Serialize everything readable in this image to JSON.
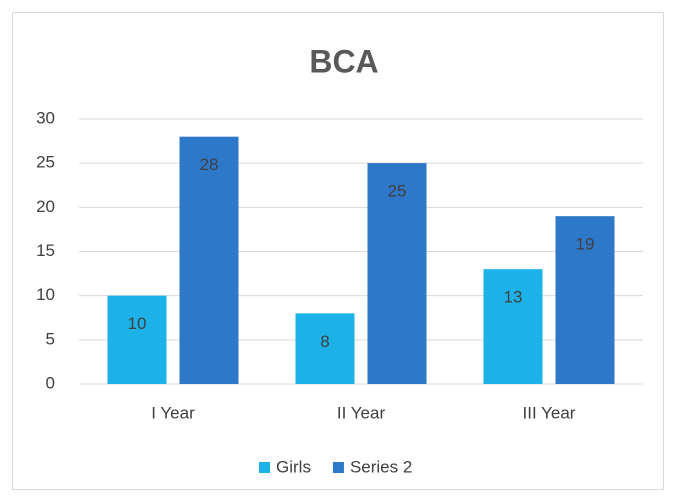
{
  "chart_data": {
    "type": "bar",
    "title": "BCA",
    "categories": [
      "I Year",
      "II Year",
      "III Year"
    ],
    "series": [
      {
        "name": "Girls",
        "color": "#1cb2e8",
        "values": [
          10,
          8,
          13
        ]
      },
      {
        "name": "Series 2",
        "color": "#2e78c9",
        "values": [
          28,
          25,
          19
        ]
      }
    ],
    "ylim": [
      0,
      30
    ],
    "yticks": [
      0,
      5,
      10,
      15,
      20,
      25,
      30
    ],
    "grid": true,
    "legend": "bottom"
  }
}
